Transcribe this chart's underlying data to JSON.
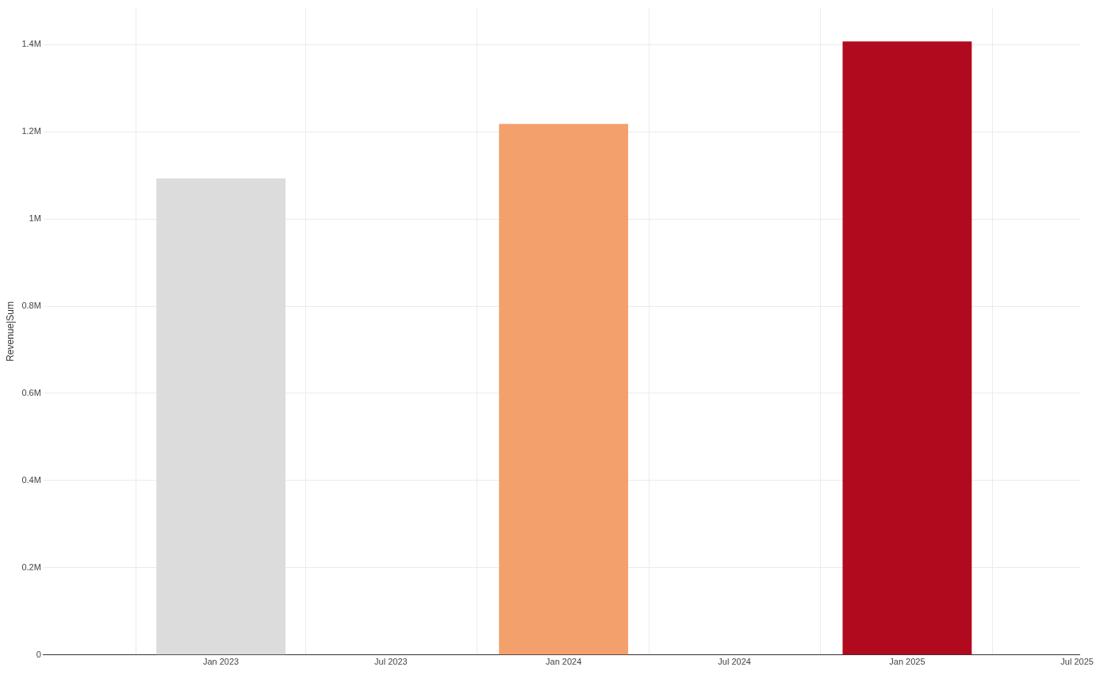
{
  "chart_data": {
    "type": "bar",
    "ylabel": "Revenue|Sum",
    "x": [
      "2023-01-01",
      "2024-01-01",
      "2025-01-01"
    ],
    "values": [
      1093000,
      1218000,
      1407000
    ],
    "colors": [
      "#dcdcdc",
      "#f4a06c",
      "#b10a1e"
    ],
    "xlim": [
      "2022-06-26",
      "2025-07-04"
    ],
    "xticks": [
      {
        "value": "2023-01-01",
        "label": "Jan 2023"
      },
      {
        "value": "2023-07-01",
        "label": "Jul 2023"
      },
      {
        "value": "2024-01-01",
        "label": "Jan 2024"
      },
      {
        "value": "2024-07-01",
        "label": "Jul 2024"
      },
      {
        "value": "2025-01-01",
        "label": "Jan 2025"
      },
      {
        "value": "2025-07-01",
        "label": "Jul 2025"
      }
    ],
    "ylim": [
      0,
      1484000
    ],
    "yticks": [
      0,
      {
        "value": 200000,
        "label": "0.2M"
      },
      {
        "value": 400000,
        "label": "0.4M"
      },
      {
        "value": 600000,
        "label": "0.6M"
      },
      {
        "value": 800000,
        "label": "0.8M"
      },
      {
        "value": 1000000,
        "label": "1M"
      },
      {
        "value": 1200000,
        "label": "1.2M"
      },
      {
        "value": 1400000,
        "label": "1.4M"
      }
    ],
    "grid": true,
    "legend": false
  }
}
